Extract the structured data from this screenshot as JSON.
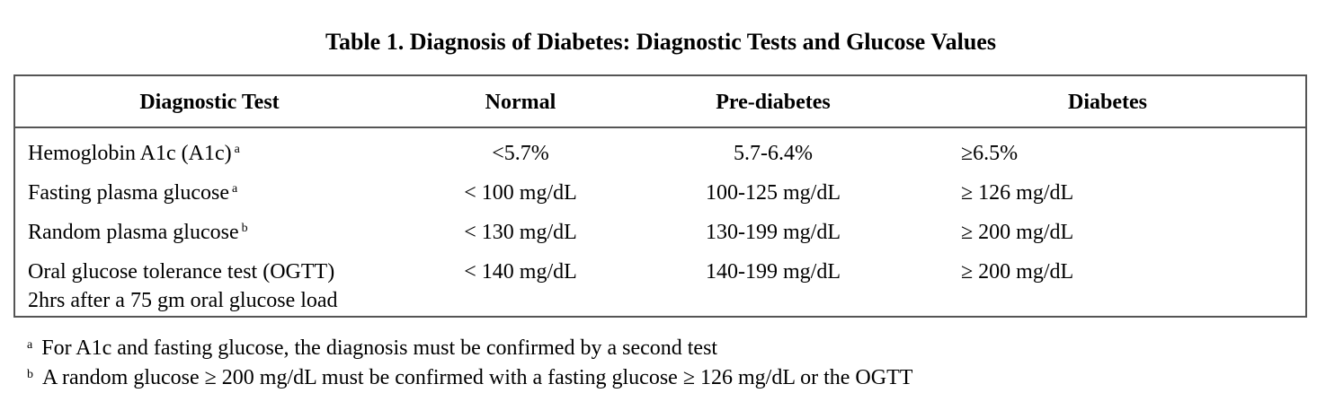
{
  "title": "Table 1.  Diagnosis of Diabetes:  Diagnostic Tests and Glucose Values",
  "table": {
    "headers": [
      "Diagnostic Test",
      "Normal",
      "Pre-diabetes",
      "Diabetes"
    ],
    "rows": [
      {
        "test": "Hemoglobin A1c (A1c)",
        "mark": "a",
        "test_line2": "",
        "normal": "<5.7%",
        "prediabetes": "5.7-6.4%",
        "diabetes": "≥6.5%"
      },
      {
        "test": "Fasting plasma glucose",
        "mark": "a",
        "test_line2": "",
        "normal": "< 100 mg/dL",
        "prediabetes": "100-125 mg/dL",
        "diabetes": "≥ 126 mg/dL"
      },
      {
        "test": "Random plasma glucose",
        "mark": "b",
        "test_line2": "",
        "normal": "< 130 mg/dL",
        "prediabetes": "130-199 mg/dL",
        "diabetes": "≥ 200 mg/dL"
      },
      {
        "test": "Oral glucose tolerance test (OGTT)",
        "mark": "",
        "test_line2": "2hrs after a 75 gm oral glucose load",
        "normal": "< 140 mg/dL",
        "prediabetes": "140-199 mg/dL",
        "diabetes": "≥ 200 mg/dL"
      }
    ]
  },
  "footnotes": [
    {
      "mark": "a",
      "text": "For A1c and fasting glucose, the diagnosis must be confirmed by a second test"
    },
    {
      "mark": "b",
      "text": "A random glucose ≥ 200 mg/dL must be confirmed with a fasting glucose ≥ 126 mg/dL or the OGTT"
    }
  ]
}
